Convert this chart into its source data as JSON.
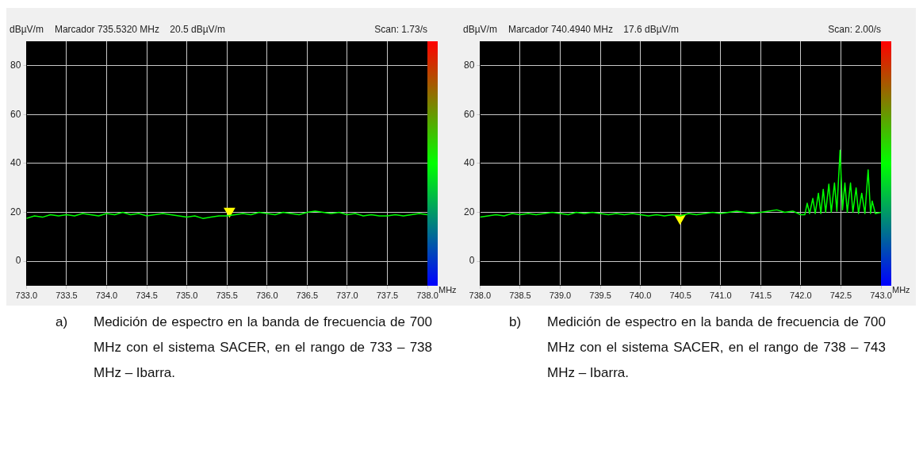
{
  "chart_data": [
    {
      "type": "line",
      "ylabel": "dBµV/m",
      "xlabel": "MHz",
      "grid": true,
      "annotations": [
        "Marcador 735.5320 MHz    20.5 dBµV/m",
        "Scan: 1.73/s",
        "a)",
        "Medición de espectro en la banda de frecuencia de 700 MHz con el sistema SACER, en el rango de 733 – 738 MHz – Ibarra."
      ],
      "xlim": [
        733,
        738
      ],
      "xticks": [
        {
          "value": 733,
          "label": "733.0"
        },
        {
          "value": 733.5,
          "label": "733.5"
        },
        {
          "value": 734,
          "label": "734.0"
        },
        {
          "value": 734.5,
          "label": "734.5"
        },
        {
          "value": 735,
          "label": "735.0"
        },
        {
          "value": 735.5,
          "label": "735.5"
        },
        {
          "value": 736,
          "label": "736.0"
        },
        {
          "value": 736.5,
          "label": "736.5"
        },
        {
          "value": 737,
          "label": "737.0"
        },
        {
          "value": 737.5,
          "label": "737.5"
        },
        {
          "value": 738,
          "label": "738.0"
        }
      ],
      "ylim": [
        -10,
        90
      ],
      "yticks": [
        0,
        20,
        40,
        60,
        80
      ],
      "x": [
        733,
        733.1,
        733.2,
        733.3,
        733.4,
        733.5,
        733.6,
        733.7,
        733.8,
        733.9,
        734,
        734.1,
        734.2,
        734.3,
        734.4,
        734.5,
        734.6,
        734.7,
        734.8,
        734.9,
        735,
        735.1,
        735.2,
        735.3,
        735.4,
        735.5,
        735.6,
        735.7,
        735.8,
        735.9,
        736,
        736.1,
        736.2,
        736.3,
        736.4,
        736.5,
        736.6,
        736.7,
        736.8,
        736.9,
        737,
        737.1,
        737.2,
        737.3,
        737.4,
        737.5,
        737.6,
        737.7,
        737.8,
        737.9,
        738
      ],
      "series": [
        {
          "color": "#00ff00",
          "values": [
            17.5,
            18.5,
            18,
            19,
            18.5,
            19,
            18.5,
            19.5,
            19,
            18.5,
            19.5,
            19,
            20,
            19,
            19.5,
            18.5,
            19,
            19.5,
            19,
            18.5,
            18,
            18.5,
            17.5,
            18,
            18.5,
            18.5,
            19,
            19.5,
            19,
            20,
            19.5,
            19,
            20,
            19.5,
            19,
            20,
            20.5,
            20,
            19.5,
            20,
            19,
            19.5,
            18.5,
            19,
            18.5,
            18.5,
            19,
            18.5,
            19,
            19.5,
            19
          ]
        },
        {
          "type": "scatter",
          "marker": "triangle",
          "color": "#ffff00",
          "x": [
            735.532
          ],
          "values": [
            20.5
          ]
        }
      ]
    },
    {
      "type": "line",
      "ylabel": "dBµV/m",
      "xlabel": "MHz",
      "grid": true,
      "annotations": [
        "Marcador 740.4940 MHz    17.6 dBµV/m",
        "Scan: 2.00/s",
        "b)",
        "Medición de espectro en la banda de frecuencia de 700 MHz con el sistema SACER, en el rango de 738 – 743 MHz – Ibarra."
      ],
      "xlim": [
        738,
        743
      ],
      "xticks": [
        {
          "value": 738,
          "label": "738.0"
        },
        {
          "value": 738.5,
          "label": "738.5"
        },
        {
          "value": 739,
          "label": "739.0"
        },
        {
          "value": 739.5,
          "label": "739.5"
        },
        {
          "value": 740,
          "label": "740.0"
        },
        {
          "value": 740.5,
          "label": "740.5"
        },
        {
          "value": 741,
          "label": "741.0"
        },
        {
          "value": 741.5,
          "label": "741.5"
        },
        {
          "value": 742,
          "label": "742.0"
        },
        {
          "value": 742.5,
          "label": "742.5"
        },
        {
          "value": 743,
          "label": "743.0"
        }
      ],
      "ylim": [
        -10,
        90
      ],
      "yticks": [
        0,
        20,
        40,
        60,
        80
      ],
      "x": [
        738,
        738.1,
        738.2,
        738.3,
        738.4,
        738.5,
        738.6,
        738.7,
        738.8,
        738.9,
        739,
        739.1,
        739.2,
        739.3,
        739.4,
        739.5,
        739.6,
        739.7,
        739.8,
        739.9,
        740,
        740.1,
        740.2,
        740.3,
        740.4,
        740.5,
        740.6,
        740.7,
        740.8,
        740.9,
        741,
        741.1,
        741.2,
        741.3,
        741.4,
        741.5,
        741.6,
        741.7,
        741.8,
        741.9,
        742,
        742.05,
        742.08,
        742.11,
        742.15,
        742.18,
        742.22,
        742.25,
        742.28,
        742.31,
        742.35,
        742.38,
        742.42,
        742.45,
        742.49,
        742.52,
        742.55,
        742.58,
        742.62,
        742.65,
        742.69,
        742.72,
        742.76,
        742.8,
        742.84,
        742.87,
        742.89,
        742.93,
        743
      ],
      "series": [
        {
          "color": "#00ff00",
          "values": [
            18,
            18.5,
            19,
            18.5,
            19.5,
            19,
            19.5,
            19,
            19.5,
            20,
            19.5,
            19,
            20,
            19.5,
            20,
            19.5,
            19,
            19.5,
            19,
            19.5,
            19,
            18.5,
            19,
            18.5,
            19,
            18.5,
            19.5,
            19,
            19.5,
            20,
            19.5,
            20,
            20.5,
            20,
            19.5,
            20,
            20.5,
            21,
            20,
            20.5,
            19,
            19,
            23.7,
            19.5,
            25.7,
            19.5,
            27.8,
            19.5,
            29.4,
            20,
            31.5,
            20,
            32,
            20.5,
            45.4,
            21,
            32,
            20,
            32,
            20,
            30,
            19.5,
            27.8,
            19.5,
            37.4,
            19.5,
            24.6,
            19.5,
            20
          ]
        },
        {
          "type": "scatter",
          "marker": "triangle",
          "color": "#ffff00",
          "x": [
            740.494
          ],
          "values": [
            17.6
          ]
        }
      ]
    }
  ]
}
